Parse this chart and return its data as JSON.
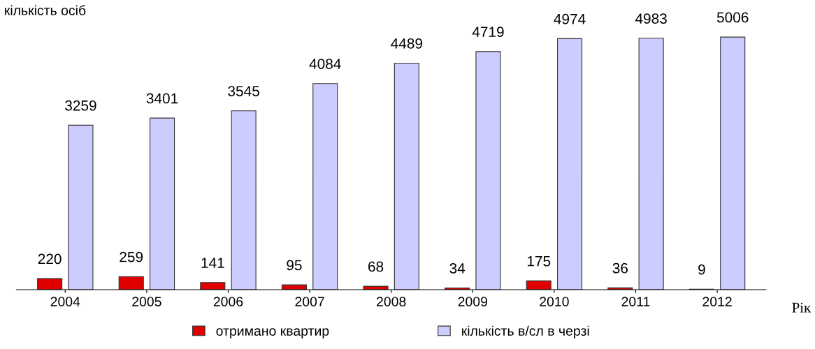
{
  "chart_data": {
    "type": "bar",
    "ylabel": "кількість осіб",
    "xlabel": "Рік",
    "categories": [
      "2004",
      "2005",
      "2006",
      "2007",
      "2008",
      "2009",
      "2010",
      "2011",
      "2012"
    ],
    "series": [
      {
        "name": "отримано квартир",
        "color": "#e00000",
        "values": [
          220,
          259,
          141,
          95,
          68,
          34,
          175,
          36,
          9
        ]
      },
      {
        "name": "кількість в/сл в черзі",
        "color": "#ccccff",
        "values": [
          3259,
          3401,
          3545,
          4084,
          4489,
          4719,
          4974,
          4983,
          5006
        ]
      }
    ],
    "data_labels": true,
    "legend": "bottom",
    "grid": false
  }
}
